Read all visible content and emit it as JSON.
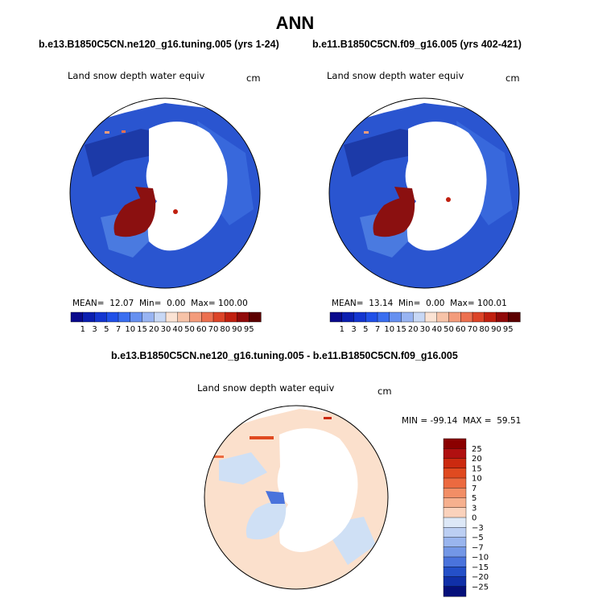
{
  "page": {
    "main_title": "ANN"
  },
  "panels": [
    {
      "case_title": "b.e13.B1850C5CN.ne120_g16.tuning.005 (yrs 1-24)",
      "variable_label": "Land snow depth water equiv",
      "units": "cm",
      "stats": {
        "mean_label": "MEAN=",
        "mean": "12.07",
        "min_label": "Min=",
        "min": "0.00",
        "max_label": "Max=",
        "max": "100.00"
      }
    },
    {
      "case_title": "b.e11.B1850C5CN.f09_g16.005 (yrs 402-421)",
      "variable_label": "Land snow depth water equiv",
      "units": "cm",
      "stats": {
        "mean_label": "MEAN=",
        "mean": "13.14",
        "min_label": "Min=",
        "min": "0.00",
        "max_label": "Max=",
        "max": "100.01"
      }
    }
  ],
  "abs_colorbar": {
    "levels": [
      "1",
      "3",
      "5",
      "7",
      "10",
      "15",
      "20",
      "30",
      "40",
      "50",
      "60",
      "70",
      "80",
      "90",
      "95"
    ],
    "colors": [
      "#0a0a8c",
      "#0b1fb0",
      "#1436d0",
      "#2050e8",
      "#3a6ef0",
      "#6690f0",
      "#98b4f2",
      "#c8d8f5",
      "#fbe3d4",
      "#f7c3a8",
      "#f39c7c",
      "#ec7050",
      "#dc4428",
      "#c02010",
      "#900a0a",
      "#5c0000"
    ]
  },
  "diff_panel": {
    "title": "b.e13.B1850C5CN.ne120_g16.tuning.005 - b.e11.B1850C5CN.f09_g16.005",
    "variable_label": "Land snow depth water equiv",
    "units": "cm",
    "minmax": "MIN = -99.14  MAX =  59.51"
  },
  "diff_colorbar": {
    "labels": [
      "25",
      "20",
      "15",
      "10",
      "7",
      "5",
      "3",
      "0",
      "−3",
      "−5",
      "−7",
      "−10",
      "−15",
      "−20",
      "−25"
    ],
    "colors": [
      "#8b0000",
      "#b01010",
      "#cc2a10",
      "#e04a20",
      "#ec6a40",
      "#f28e66",
      "#f6b08e",
      "#fad2bc",
      "#dde8f7",
      "#bccff3",
      "#99b5ee",
      "#7397e6",
      "#4a73dc",
      "#2450c8",
      "#1030a8",
      "#05107a"
    ]
  },
  "colors": {
    "ocean": "#ffffff",
    "coast": "#000000",
    "greenland_abs": "#8b1010",
    "land_blue_dark": "#1a3fc0",
    "land_blue_light": "#4a7ae0",
    "diff_land": "#fbe0cc",
    "diff_light_blue": "#cfe0f5"
  }
}
